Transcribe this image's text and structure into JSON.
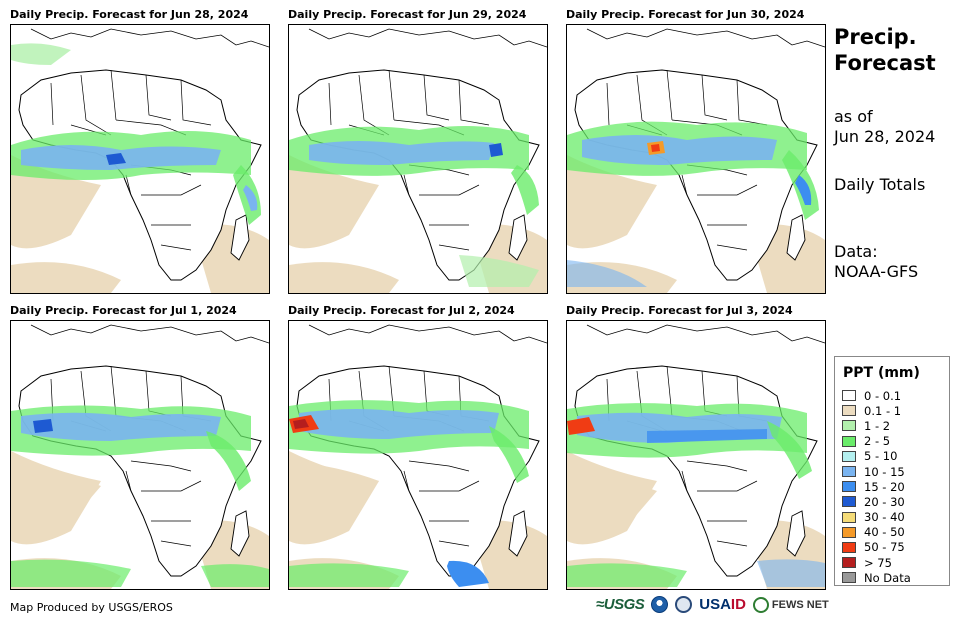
{
  "panels": [
    {
      "title": "Daily Precip. Forecast for Jun 28, 2024"
    },
    {
      "title": "Daily Precip. Forecast for Jun 29, 2024"
    },
    {
      "title": "Daily Precip. Forecast for Jun 30, 2024"
    },
    {
      "title": "Daily Precip. Forecast for Jul 1, 2024"
    },
    {
      "title": "Daily Precip. Forecast for Jul 2, 2024"
    },
    {
      "title": "Daily Precip. Forecast for Jul 3, 2024"
    }
  ],
  "side": {
    "title_line1": "Precip.",
    "title_line2": "Forecast",
    "asof_line1": "as of",
    "asof_line2": "Jun 28, 2024",
    "totals": "Daily Totals",
    "data_line1": "Data:",
    "data_line2": "NOAA-GFS"
  },
  "legend": {
    "title": "PPT (mm)",
    "items": [
      {
        "label": "0 - 0.1",
        "color": "#ffffff"
      },
      {
        "label": "0.1 - 1",
        "color": "#ecdcc0"
      },
      {
        "label": "1 - 2",
        "color": "#b2f0ad"
      },
      {
        "label": "2 - 5",
        "color": "#6aec6a"
      },
      {
        "label": "5 - 10",
        "color": "#b4f0f0"
      },
      {
        "label": "10 - 15",
        "color": "#7ab4f0"
      },
      {
        "label": "15 - 20",
        "color": "#3c8ef0"
      },
      {
        "label": "20 - 30",
        "color": "#1e5ad2"
      },
      {
        "label": "30 - 40",
        "color": "#f5dc78"
      },
      {
        "label": "40 - 50",
        "color": "#f59a28"
      },
      {
        "label": "50 - 75",
        "color": "#f03c14"
      },
      {
        "label": "> 75",
        "color": "#b41e1e"
      },
      {
        "label": "No Data",
        "color": "#999999"
      }
    ]
  },
  "footer": {
    "credit": "Map Produced by USGS/EROS",
    "logos": {
      "usgs": "≈USGS",
      "usaid_a": "USA",
      "usaid_b": "ID",
      "fews": "FEWS NET"
    }
  }
}
